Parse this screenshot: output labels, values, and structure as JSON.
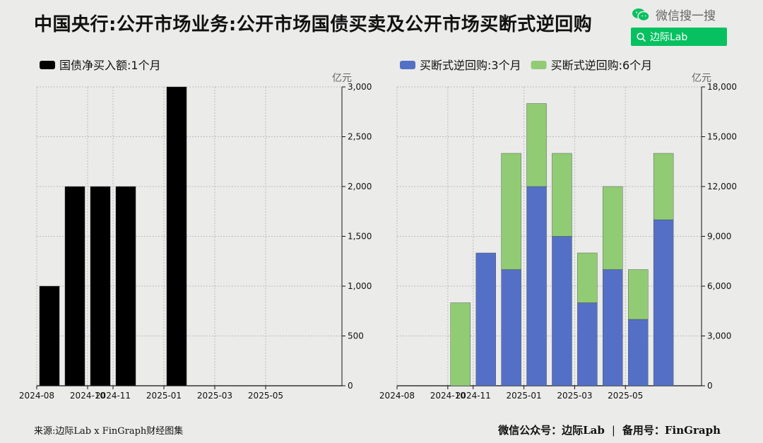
{
  "title": "中国央行:公开市场业务:公开市场国债买卖及公开市场买断式逆回购",
  "brand": {
    "text": "微信搜一搜",
    "search_text": "边际Lab"
  },
  "footer": {
    "source": "来源:边际Lab x FinGraph财经图集",
    "account": "微信公众号：边际Lab",
    "sep": "|",
    "backup": "备用号：FinGraph"
  },
  "colors": {
    "bond": "#000000",
    "m3": "#5470c6",
    "m6": "#91cc75",
    "grid": "#bbbbbb"
  },
  "chart_data": [
    {
      "type": "bar",
      "unit": "亿元",
      "series": [
        {
          "name": "国债净买入额:1个月",
          "values": [
            1000,
            2000,
            2000,
            2000,
            0,
            3000,
            0,
            0,
            0,
            0,
            0,
            0
          ]
        }
      ],
      "categories": [
        "2024-08",
        "2024-09",
        "2024-10",
        "2024-11",
        "2024-12",
        "2025-01",
        "2025-02",
        "2025-03",
        "2025-04",
        "2025-05",
        "2025-06",
        "2025-07"
      ],
      "xticks": [
        "2024-08",
        "2024-10",
        "2024-11",
        "2025-01",
        "2025-03",
        "2025-05"
      ],
      "ylim": [
        0,
        3000
      ],
      "yticks": [
        0,
        500,
        1000,
        1500,
        2000,
        2500,
        3000
      ],
      "ytick_labels": [
        "0",
        "500",
        "1,000",
        "1,500",
        "2,000",
        "2,500",
        "3,000"
      ],
      "yaxis": "right",
      "grid": true,
      "legend": "top-left"
    },
    {
      "type": "bar",
      "stacked": true,
      "unit": "亿元",
      "series": [
        {
          "name": "买断式逆回购:3个月",
          "values": [
            0,
            0,
            0,
            8000,
            7000,
            12000,
            9000,
            5000,
            7000,
            4000,
            10000,
            0
          ]
        },
        {
          "name": "买断式逆回购:6个月",
          "values": [
            0,
            0,
            5000,
            0,
            7000,
            5000,
            5000,
            3000,
            5000,
            3000,
            4000,
            0
          ]
        }
      ],
      "categories": [
        "2024-08",
        "2024-09",
        "2024-10",
        "2024-11",
        "2024-12",
        "2025-01",
        "2025-02",
        "2025-03",
        "2025-04",
        "2025-05",
        "2025-06",
        "2025-07"
      ],
      "xticks": [
        "2024-08",
        "2024-10",
        "2024-11",
        "2025-01",
        "2025-03",
        "2025-05"
      ],
      "ylim": [
        0,
        18000
      ],
      "yticks": [
        0,
        3000,
        6000,
        9000,
        12000,
        15000,
        18000
      ],
      "ytick_labels": [
        "0",
        "3,000",
        "6,000",
        "9,000",
        "12,000",
        "15,000",
        "18,000"
      ],
      "yaxis": "right",
      "grid": true,
      "legend": "top-left"
    }
  ]
}
